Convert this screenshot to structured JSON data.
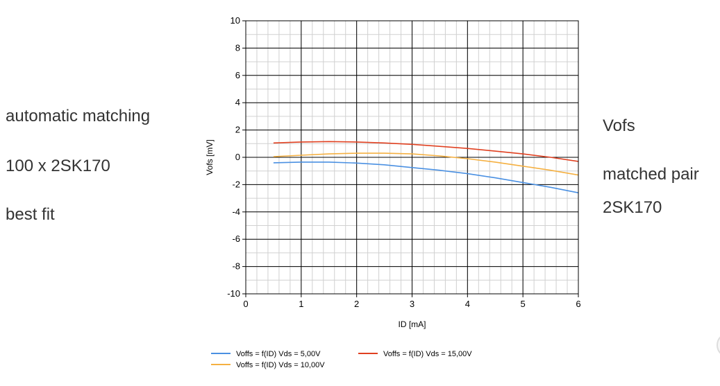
{
  "side_text": {
    "left": [
      "automatic matching",
      "100 x 2SK170",
      "best fit"
    ],
    "right": [
      "Vofs",
      "matched pair",
      "2SK170"
    ]
  },
  "chart_data": {
    "type": "line",
    "xlabel": "ID [mA]",
    "ylabel": "Vofs [mV]",
    "xlim": [
      0,
      6
    ],
    "ylim": [
      -10,
      10
    ],
    "xticks": [
      0,
      1,
      2,
      3,
      4,
      5,
      6
    ],
    "yticks": [
      -10,
      -8,
      -6,
      -4,
      -2,
      0,
      2,
      4,
      6,
      8,
      10
    ],
    "major_grid": true,
    "minor_grid": true,
    "legend_position": "bottom",
    "series": [
      {
        "name": "Voffs = f(ID) Vds = 5,00V",
        "color": "#4a90e2",
        "x": [
          0.5,
          1.0,
          1.5,
          2.0,
          2.5,
          3.0,
          3.5,
          4.0,
          4.5,
          5.0,
          5.5,
          6.0
        ],
        "y": [
          -0.4,
          -0.35,
          -0.35,
          -0.42,
          -0.55,
          -0.75,
          -0.95,
          -1.2,
          -1.5,
          -1.85,
          -2.2,
          -2.6
        ]
      },
      {
        "name": "Voffs = f(ID) Vds = 10,00V",
        "color": "#f5b041",
        "x": [
          0.5,
          1.0,
          1.5,
          2.0,
          2.5,
          3.0,
          3.5,
          4.0,
          4.5,
          5.0,
          5.5,
          6.0
        ],
        "y": [
          0.05,
          0.15,
          0.25,
          0.3,
          0.3,
          0.25,
          0.1,
          -0.1,
          -0.35,
          -0.65,
          -0.95,
          -1.3
        ]
      },
      {
        "name": "Voffs = f(ID) Vds = 15,00V",
        "color": "#e04020",
        "x": [
          0.5,
          1.0,
          1.5,
          2.0,
          2.5,
          3.0,
          3.5,
          4.0,
          4.5,
          5.0,
          5.5,
          6.0
        ],
        "y": [
          1.05,
          1.12,
          1.15,
          1.12,
          1.05,
          0.95,
          0.8,
          0.65,
          0.45,
          0.25,
          0.0,
          -0.3
        ]
      }
    ]
  }
}
